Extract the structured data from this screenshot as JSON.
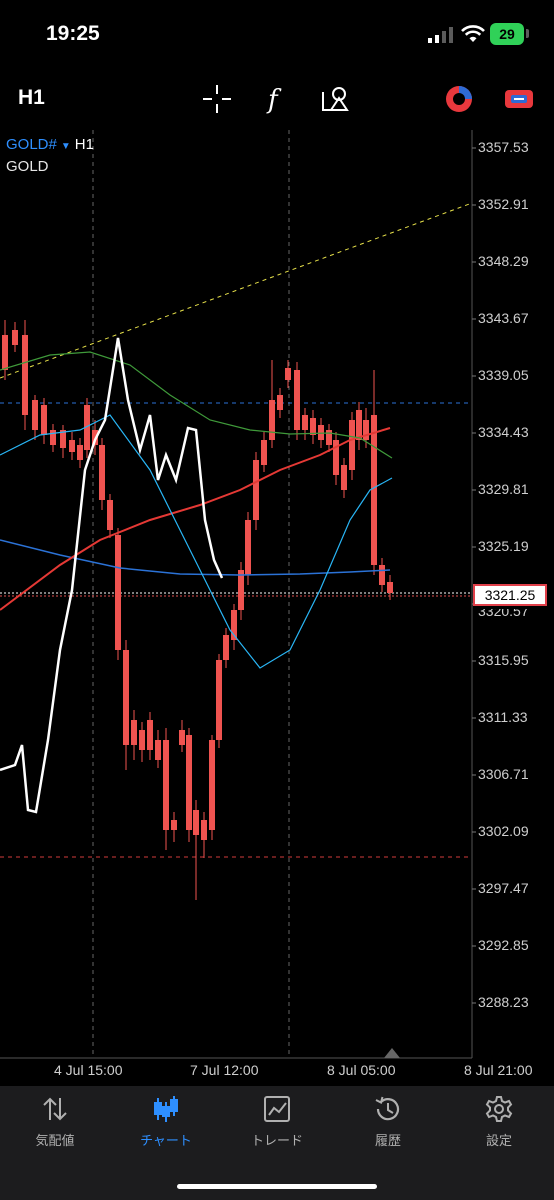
{
  "status": {
    "time": "19:25",
    "battery": "29"
  },
  "toolbar": {
    "timeframe": "H1",
    "crosshair_icon": "crosshair-icon",
    "indicator_icon": "function-icon",
    "objects_icon": "shapes-icon",
    "right_icons": [
      "trade-signal-icon",
      "account-switch-icon"
    ]
  },
  "chart": {
    "symbol": "GOLD#",
    "timeframe": "H1",
    "description": "GOLD",
    "current_price": "3321.25",
    "price_axis": [
      "3357.53",
      "3352.91",
      "3348.29",
      "3343.67",
      "3339.05",
      "3334.43",
      "3329.81",
      "3325.19",
      "3320.57",
      "3315.95",
      "3311.33",
      "3306.71",
      "3302.09",
      "3297.47",
      "3292.85",
      "3288.23"
    ],
    "time_axis": [
      "4 Jul 15:00",
      "7 Jul 12:00",
      "8 Jul 05:00",
      "8 Jul 21:00"
    ],
    "colors": {
      "bull": "#26a69a",
      "bear": "#ef5350",
      "ma_blue": "#2b72d6",
      "ma_red": "#e53935",
      "ma_green": "#3f9a3a",
      "ma_cyan": "#29b6f6",
      "line_white": "#ffffff",
      "trend": "#e6e04a"
    }
  },
  "nav": {
    "items": [
      {
        "label": "気配値",
        "icon": "quotes-icon",
        "active": false
      },
      {
        "label": "チャート",
        "icon": "chart-icon",
        "active": true
      },
      {
        "label": "トレード",
        "icon": "trade-icon",
        "active": false
      },
      {
        "label": "履歴",
        "icon": "history-icon",
        "active": false
      },
      {
        "label": "設定",
        "icon": "settings-icon",
        "active": false
      }
    ]
  }
}
